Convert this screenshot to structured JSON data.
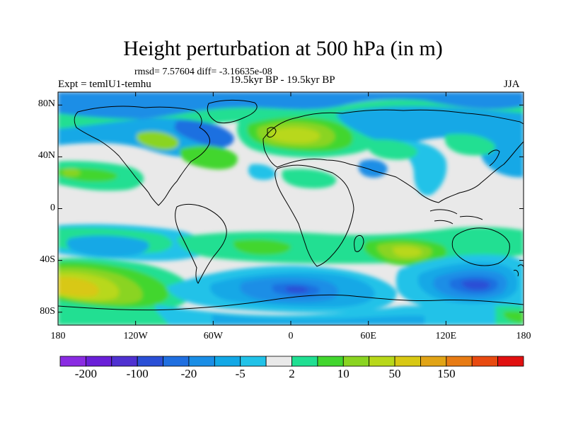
{
  "title": "Height perturbation at 500 hPa (in m)",
  "stats": "rmsd= 7.57604 diff= -3.16635e-08",
  "left_label": "Expt = temlU1-temhu",
  "center_label": "19.5kyr BP - 19.5kyr BP",
  "right_label": "JJA",
  "map": {
    "lon_range": [
      -180,
      180
    ],
    "lat_range": [
      -90,
      90
    ],
    "lat_ticks": [
      {
        "value": 80,
        "label": "80N"
      },
      {
        "value": 40,
        "label": "40N"
      },
      {
        "value": 0,
        "label": "0"
      },
      {
        "value": -40,
        "label": "40S"
      },
      {
        "value": -80,
        "label": "80S"
      }
    ],
    "lon_ticks": [
      {
        "value": -180,
        "label": "180"
      },
      {
        "value": -120,
        "label": "120W"
      },
      {
        "value": -60,
        "label": "60W"
      },
      {
        "value": 0,
        "label": "0"
      },
      {
        "value": 60,
        "label": "60E"
      },
      {
        "value": 120,
        "label": "120E"
      },
      {
        "value": 180,
        "label": "180"
      }
    ]
  },
  "colorbar": {
    "colors": [
      "#8a2be2",
      "#6a1fd8",
      "#4f31d1",
      "#2a4fd6",
      "#1f6fe0",
      "#1a8ee6",
      "#12a8e6",
      "#21c2e8",
      "#e9e9e9",
      "#20df92",
      "#42d62e",
      "#8ad421",
      "#b8d81a",
      "#d8c813",
      "#e1a416",
      "#e77b14",
      "#e84a10",
      "#e11010"
    ],
    "labels": [
      "-200",
      "-100",
      "-20",
      "-5",
      "2",
      "10",
      "50",
      "150"
    ]
  }
}
